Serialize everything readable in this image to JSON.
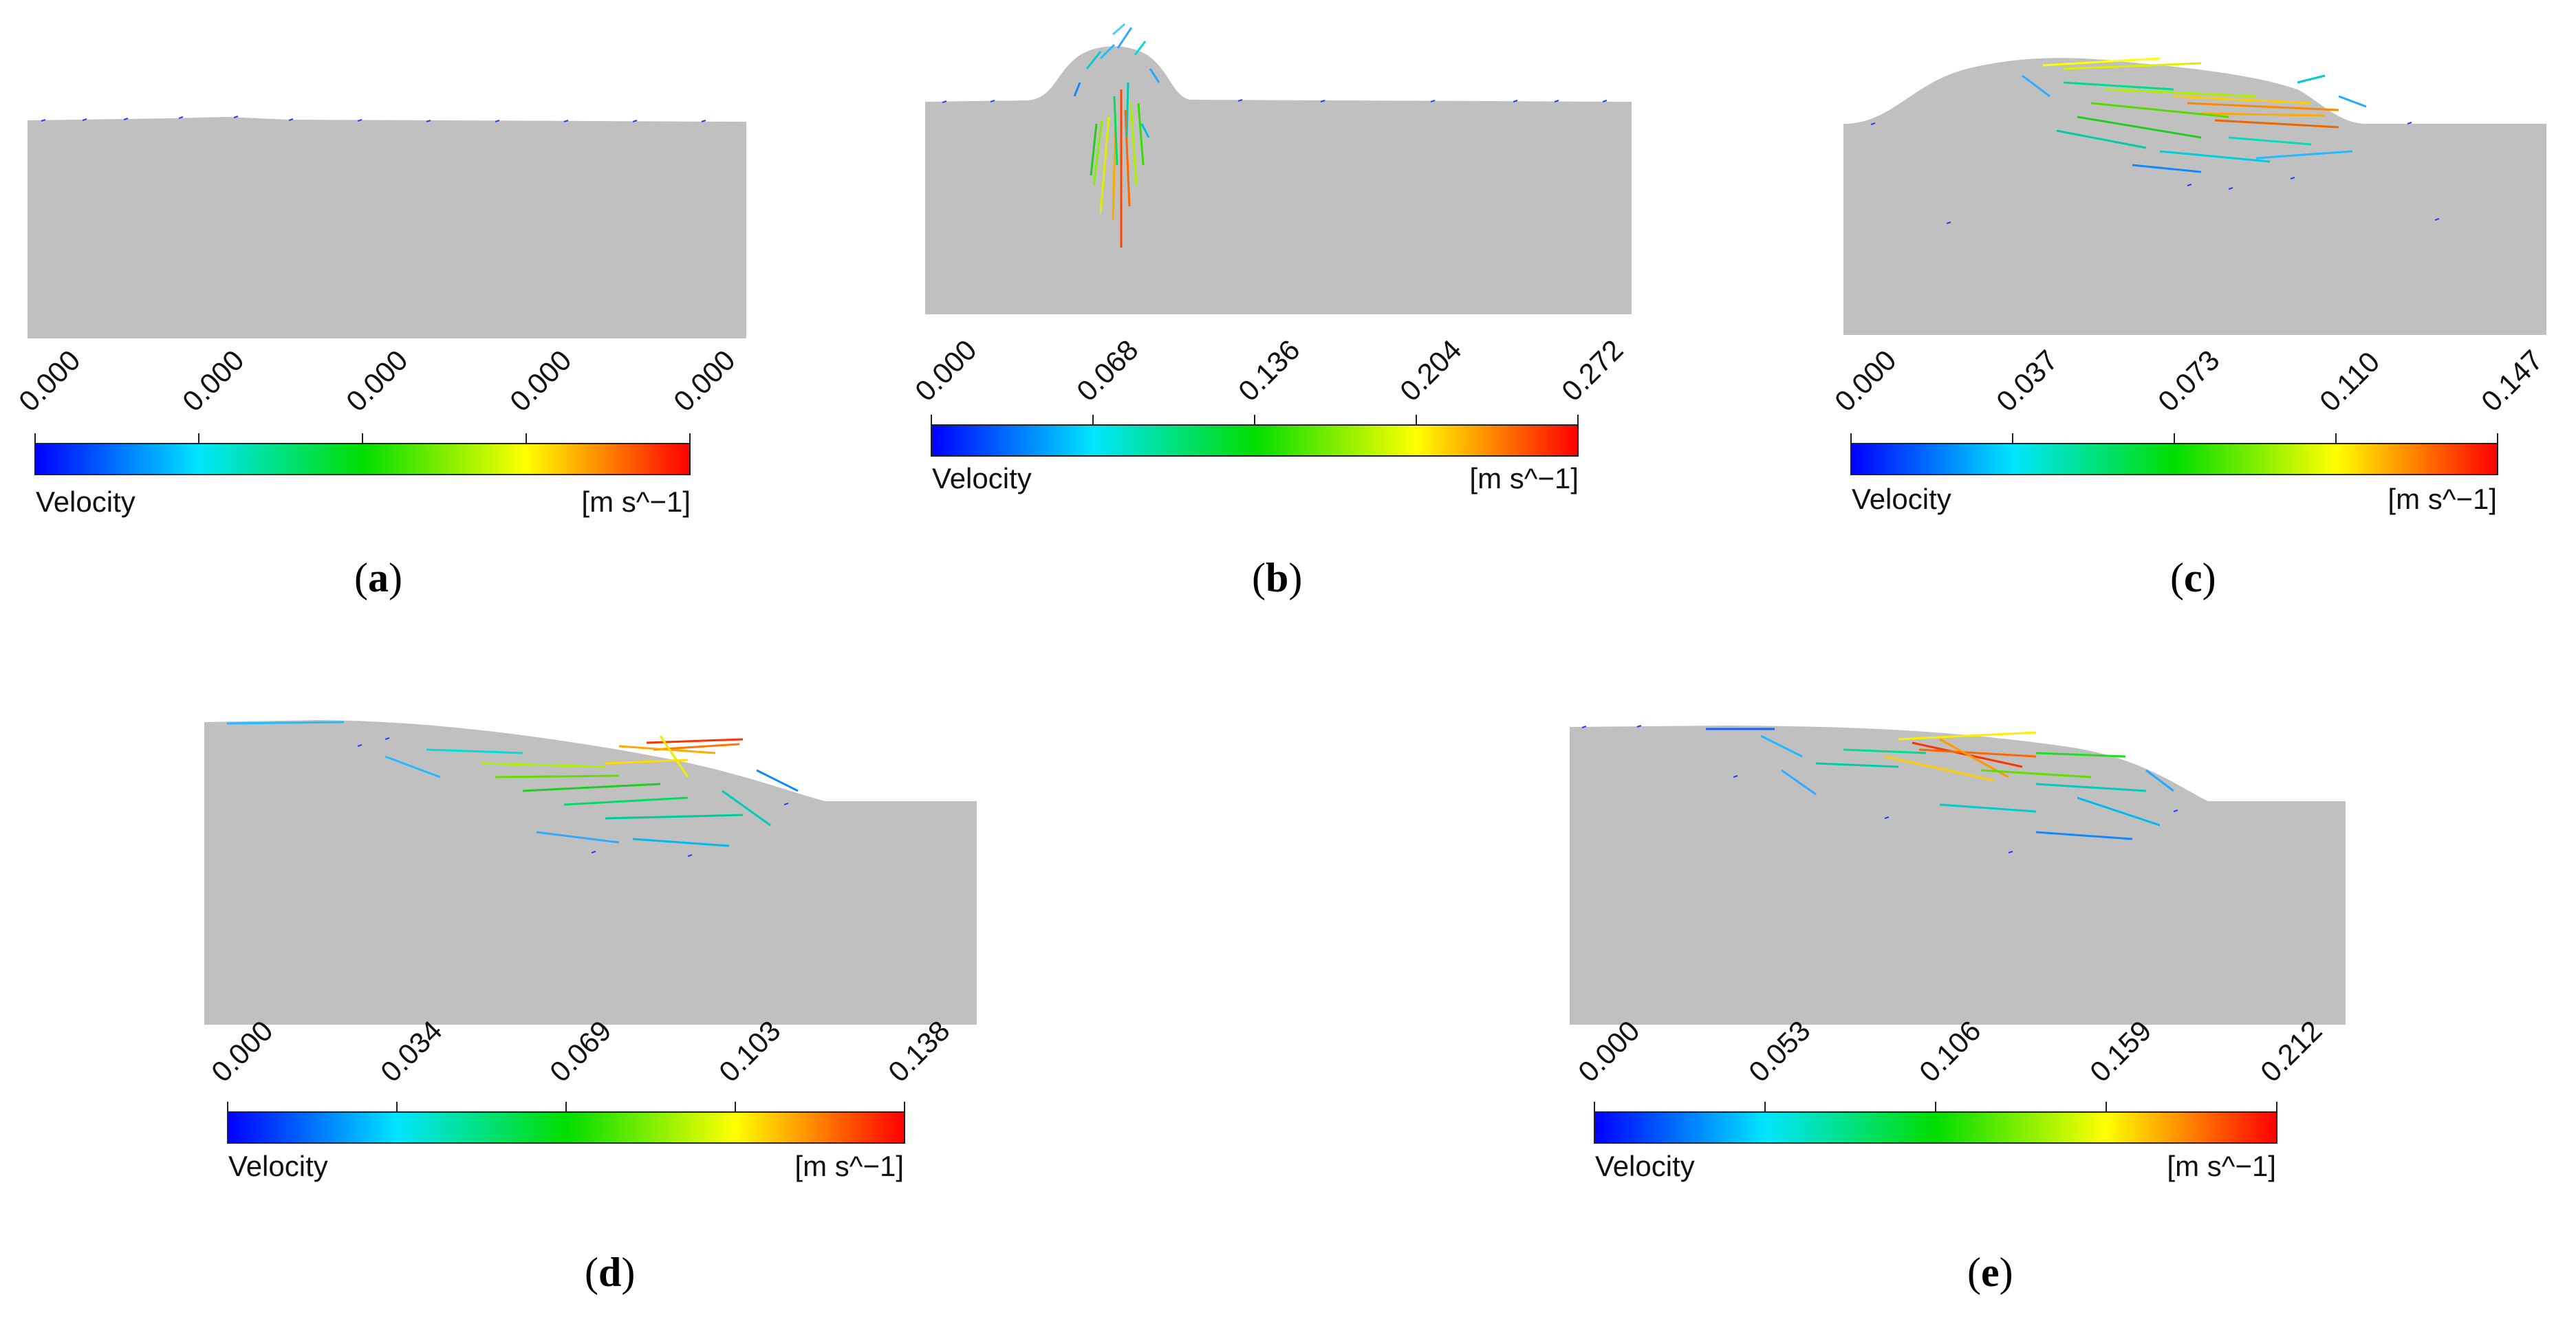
{
  "legend_label": "Velocity",
  "legend_unit": "[m s^−1]",
  "colorbar_colors": [
    "#0000ff",
    "#00e5ff",
    "#00dd00",
    "#ffff00",
    "#ff0000"
  ],
  "panels": [
    {
      "id": "a",
      "caption": "a",
      "ticks": [
        "0.000",
        "0.000",
        "0.000",
        "0.000",
        "0.000"
      ]
    },
    {
      "id": "b",
      "caption": "b",
      "ticks": [
        "0.000",
        "0.068",
        "0.136",
        "0.204",
        "0.272"
      ]
    },
    {
      "id": "c",
      "caption": "c",
      "ticks": [
        "0.000",
        "0.037",
        "0.073",
        "0.110",
        "0.147"
      ]
    },
    {
      "id": "d",
      "caption": "d",
      "ticks": [
        "0.000",
        "0.034",
        "0.069",
        "0.103",
        "0.138"
      ]
    },
    {
      "id": "e",
      "caption": "e",
      "ticks": [
        "0.000",
        "0.053",
        "0.106",
        "0.159",
        "0.212"
      ]
    }
  ]
}
